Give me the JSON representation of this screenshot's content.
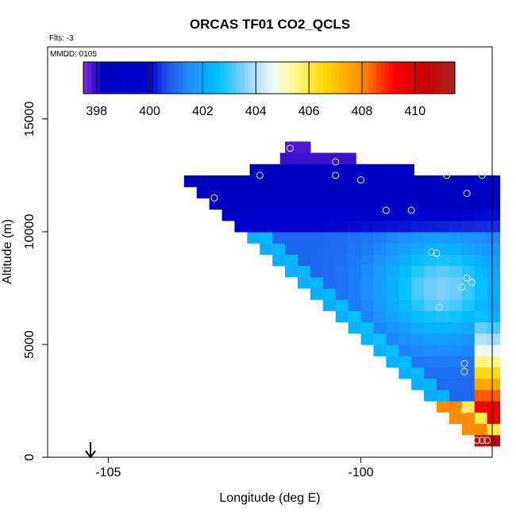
{
  "chart_data": {
    "type": "heatmap",
    "title": "ORCAS TF01 CO2_QCLS",
    "flts_label": "Flts: -3",
    "mmdd_label": "MMDD: 0105",
    "xlabel": "Longitude (deg E)",
    "ylabel": "Altitude (m)",
    "xlim": [
      -106.2,
      -97.4
    ],
    "ylim": [
      0,
      18200
    ],
    "x_ticks": [
      -105,
      -100
    ],
    "x_tick_labels": [
      "-105",
      "-100"
    ],
    "y_ticks": [
      0,
      5000,
      10000,
      15000
    ],
    "y_tick_labels": [
      "0",
      "5000",
      "10000",
      "15000"
    ],
    "colorbar": {
      "range": [
        397.5,
        411.5
      ],
      "ticks": [
        398,
        400,
        402,
        404,
        406,
        408,
        410
      ],
      "tick_labels": [
        "398",
        "400",
        "402",
        "404",
        "406",
        "408",
        "410"
      ]
    },
    "arrow_longitude": -105.05,
    "field": {
      "lon_step": 0.25,
      "alt_step": 500,
      "edge": [
        [
          -103.0,
          11500
        ],
        [
          -97.4,
          500
        ]
      ],
      "top_rows": [
        {
          "alt": 13750,
          "lon_min": -101.5,
          "lon_max": -101.2,
          "value": 397.8
        },
        {
          "alt": 13250,
          "lon_min": -101.6,
          "lon_max": -100.3,
          "value": 397.9
        },
        {
          "alt": 12750,
          "lon_min": -102.2,
          "lon_max": -99.1,
          "value": 398.6
        }
      ],
      "low_alt_value": 410.8,
      "notes": "Values from 402 near the lower-left edge rising to 410 at low altitude near -97.5"
    },
    "sample_points": [
      {
        "lon": -101.4,
        "alt": 13700
      },
      {
        "lon": -100.5,
        "alt": 13100
      },
      {
        "lon": -102.0,
        "alt": 12500
      },
      {
        "lon": -100.5,
        "alt": 12500
      },
      {
        "lon": -100.0,
        "alt": 12300
      },
      {
        "lon": -98.3,
        "alt": 12500
      },
      {
        "lon": -97.6,
        "alt": 12500
      },
      {
        "lon": -97.9,
        "alt": 11700
      },
      {
        "lon": -102.9,
        "alt": 11500
      },
      {
        "lon": -99.5,
        "alt": 10950
      },
      {
        "lon": -99.0,
        "alt": 10950
      },
      {
        "lon": -98.6,
        "alt": 9100
      },
      {
        "lon": -98.5,
        "alt": 9050
      },
      {
        "lon": -97.9,
        "alt": 7950
      },
      {
        "lon": -97.8,
        "alt": 7750
      },
      {
        "lon": -98.0,
        "alt": 7550
      },
      {
        "lon": -98.45,
        "alt": 6650
      },
      {
        "lon": -97.95,
        "alt": 4150
      },
      {
        "lon": -97.95,
        "alt": 3800
      },
      {
        "lon": -97.95,
        "alt": 2100
      },
      {
        "lon": -97.9,
        "alt": 750
      },
      {
        "lon": -97.7,
        "alt": 750
      },
      {
        "lon": -97.6,
        "alt": 750
      },
      {
        "lon": -97.5,
        "alt": 750
      }
    ]
  }
}
